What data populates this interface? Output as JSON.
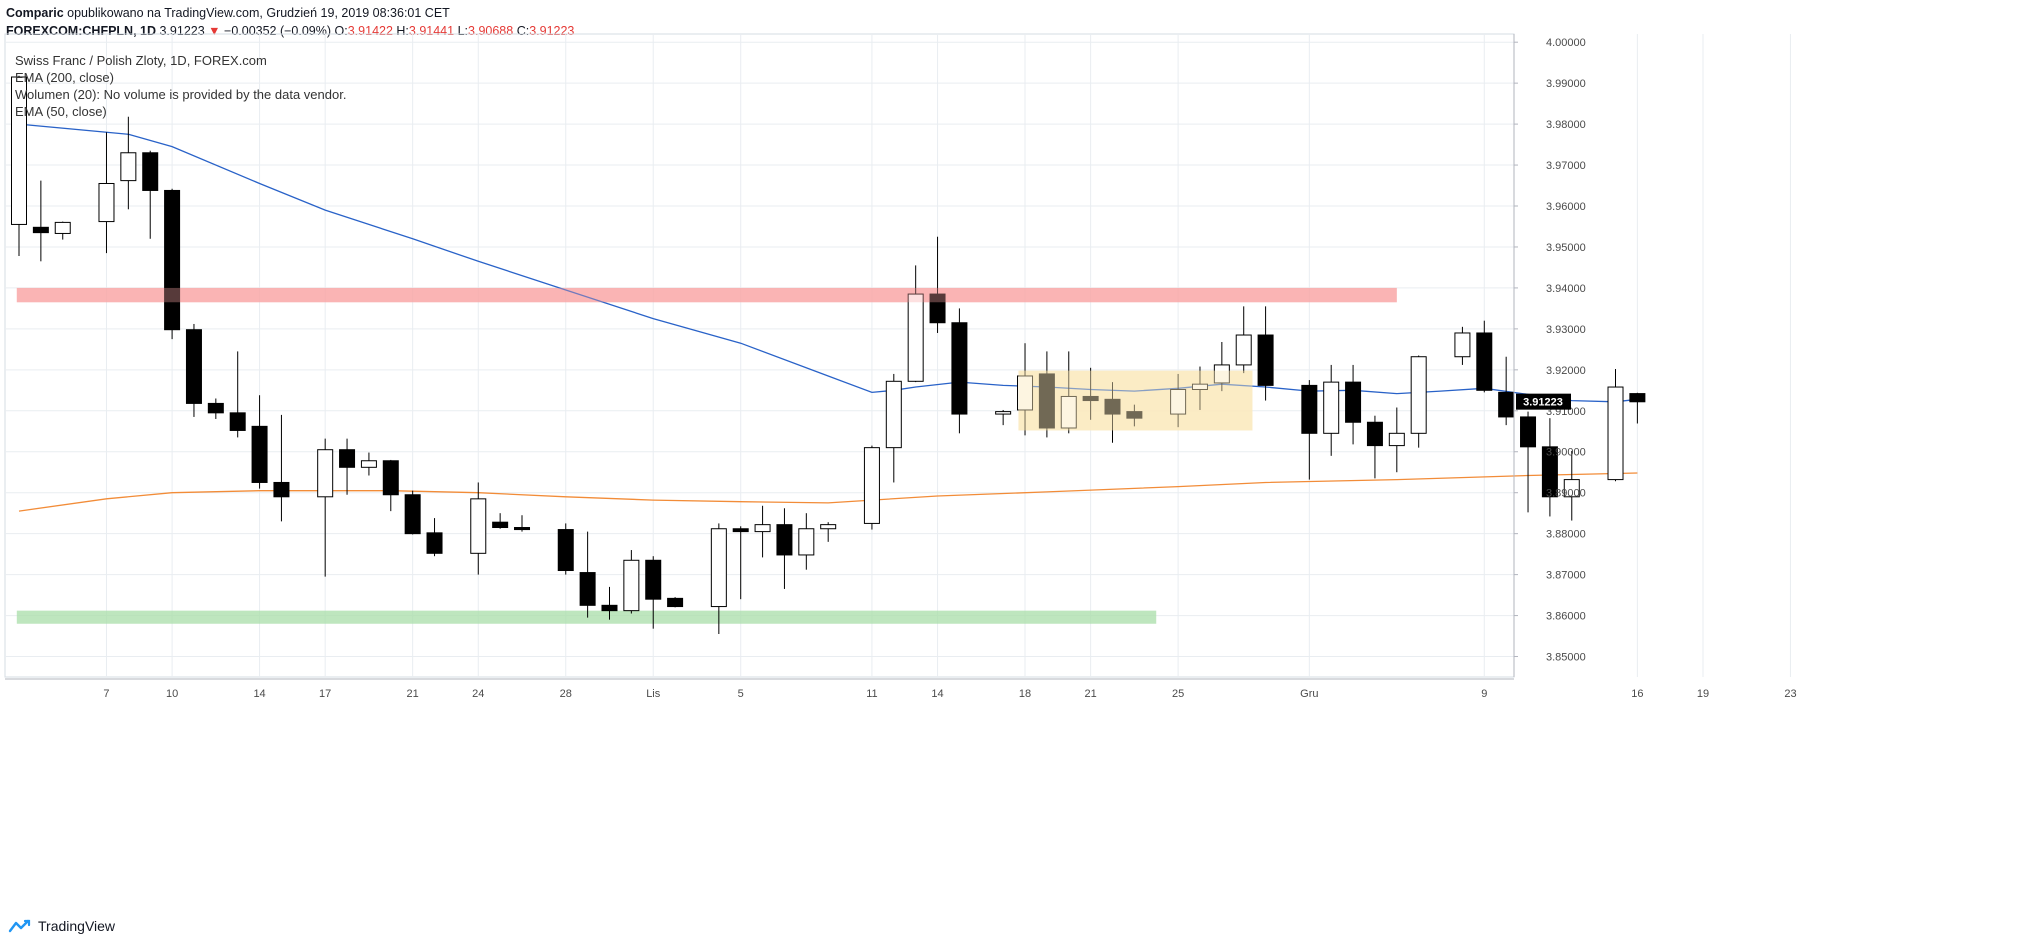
{
  "header": {
    "line1_user": "Comparic",
    "line1_rest": "opublikowano na TradingView.com, Grudzień 19, 2019 08:36:01 CET",
    "symbol": "FOREXCOM:CHFPLN, 1D",
    "last": "3.91223",
    "change_arrow": "▼",
    "change": "−0.00352 (−0.09%)",
    "o_label": "O:",
    "o_val": "3.91422",
    "h_label": "H:",
    "h_val": "3.91441",
    "l_label": "L:",
    "l_val": "3.90688",
    "c_label": "C:",
    "c_val": "3.91223"
  },
  "legend": {
    "title": "Swiss Franc / Polish Zloty, 1D, FOREX.com",
    "ema200": "EMA (200, close)",
    "volume": "Wolumen (20): No volume is provided by the data vendor.",
    "ema50": "EMA (50, close)"
  },
  "footer": {
    "brand": "TradingView"
  },
  "colors": {
    "up_body": "#ffffff",
    "down_body": "#000000",
    "wick": "#000000",
    "ema200": "#f28c38",
    "ema50": "#2962c8",
    "resistance": "#f8a5a5",
    "support": "#a8dea8",
    "range": "#fbe8bc",
    "grid": "#e9edf1",
    "price_tag": "#000000"
  },
  "chart_data": {
    "type": "candlestick",
    "ylim": [
      3.845,
      4.002
    ],
    "y_ticks": [
      "4.00000",
      "3.99000",
      "3.98000",
      "3.97000",
      "3.96000",
      "3.95000",
      "3.94000",
      "3.93000",
      "3.92000",
      "3.91000",
      "3.90000",
      "3.89000",
      "3.88000",
      "3.87000",
      "3.86000",
      "3.85000"
    ],
    "y_tick_values": [
      4.0,
      3.99,
      3.98,
      3.97,
      3.96,
      3.95,
      3.94,
      3.93,
      3.92,
      3.91,
      3.9,
      3.89,
      3.88,
      3.87,
      3.86,
      3.85
    ],
    "x_ticks": [
      {
        "label": "7",
        "day": 7
      },
      {
        "label": "10",
        "day": 10
      },
      {
        "label": "14",
        "day": 14
      },
      {
        "label": "17",
        "day": 17
      },
      {
        "label": "21",
        "day": 21
      },
      {
        "label": "24",
        "day": 24
      },
      {
        "label": "28",
        "day": 28
      },
      {
        "label": "Lis",
        "day": 32
      },
      {
        "label": "5",
        "day": 36
      },
      {
        "label": "11",
        "day": 42
      },
      {
        "label": "14",
        "day": 45
      },
      {
        "label": "18",
        "day": 49
      },
      {
        "label": "21",
        "day": 52
      },
      {
        "label": "25",
        "day": 56
      },
      {
        "label": "Gru",
        "day": 62
      },
      {
        "label": "9",
        "day": 70
      },
      {
        "label": "16",
        "day": 77
      },
      {
        "label": "19",
        "day": 80
      },
      {
        "label": "23",
        "day": 84
      }
    ],
    "last_price_label": "3.91223",
    "last_price": 3.91223,
    "candles": [
      {
        "d": 3,
        "o": 3.9555,
        "h": 3.9918,
        "l": 3.9478,
        "c": 3.9915
      },
      {
        "d": 4,
        "o": 3.9548,
        "h": 3.9662,
        "l": 3.9465,
        "c": 3.9535
      },
      {
        "d": 5,
        "o": 3.9533,
        "h": 3.9562,
        "l": 3.9518,
        "c": 3.956
      },
      {
        "d": 7,
        "o": 3.9562,
        "h": 3.978,
        "l": 3.9485,
        "c": 3.9655
      },
      {
        "d": 8,
        "o": 3.9662,
        "h": 3.9818,
        "l": 3.9592,
        "c": 3.973
      },
      {
        "d": 9,
        "o": 3.973,
        "h": 3.9735,
        "l": 3.952,
        "c": 3.9638
      },
      {
        "d": 10,
        "o": 3.9638,
        "h": 3.9642,
        "l": 3.9275,
        "c": 3.9298
      },
      {
        "d": 11,
        "o": 3.9298,
        "h": 3.9312,
        "l": 3.9085,
        "c": 3.9118
      },
      {
        "d": 12,
        "o": 3.9118,
        "h": 3.913,
        "l": 3.908,
        "c": 3.9095
      },
      {
        "d": 13,
        "o": 3.9095,
        "h": 3.9245,
        "l": 3.9035,
        "c": 3.9052
      },
      {
        "d": 14,
        "o": 3.9062,
        "h": 3.9138,
        "l": 3.891,
        "c": 3.8925
      },
      {
        "d": 15,
        "o": 3.8925,
        "h": 3.909,
        "l": 3.883,
        "c": 3.889
      },
      {
        "d": 17,
        "o": 3.889,
        "h": 3.9032,
        "l": 3.8695,
        "c": 3.9005
      },
      {
        "d": 18,
        "o": 3.9005,
        "h": 3.9032,
        "l": 3.8895,
        "c": 3.8962
      },
      {
        "d": 19,
        "o": 3.8962,
        "h": 3.8998,
        "l": 3.8942,
        "c": 3.8978
      },
      {
        "d": 20,
        "o": 3.8978,
        "h": 3.898,
        "l": 3.8855,
        "c": 3.8895
      },
      {
        "d": 21,
        "o": 3.8895,
        "h": 3.8905,
        "l": 3.8798,
        "c": 3.88
      },
      {
        "d": 22,
        "o": 3.8802,
        "h": 3.8838,
        "l": 3.8745,
        "c": 3.8752
      },
      {
        "d": 24,
        "o": 3.8752,
        "h": 3.8925,
        "l": 3.87,
        "c": 3.8885
      },
      {
        "d": 25,
        "o": 3.8828,
        "h": 3.885,
        "l": 3.8812,
        "c": 3.8815
      },
      {
        "d": 26,
        "o": 3.8815,
        "h": 3.8845,
        "l": 3.8805,
        "c": 3.881
      },
      {
        "d": 28,
        "o": 3.881,
        "h": 3.8825,
        "l": 3.87,
        "c": 3.871
      },
      {
        "d": 29,
        "o": 3.8705,
        "h": 3.8805,
        "l": 3.8595,
        "c": 3.8625
      },
      {
        "d": 30,
        "o": 3.8625,
        "h": 3.867,
        "l": 3.859,
        "c": 3.8612
      },
      {
        "d": 31,
        "o": 3.8612,
        "h": 3.876,
        "l": 3.8605,
        "c": 3.8735
      },
      {
        "d": 32,
        "o": 3.8735,
        "h": 3.8745,
        "l": 3.8568,
        "c": 3.864
      },
      {
        "d": 33,
        "o": 3.8642,
        "h": 3.8645,
        "l": 3.862,
        "c": 3.8622
      },
      {
        "d": 35,
        "o": 3.8622,
        "h": 3.8825,
        "l": 3.8555,
        "c": 3.8812
      },
      {
        "d": 36,
        "o": 3.8812,
        "h": 3.8818,
        "l": 3.864,
        "c": 3.8805
      },
      {
        "d": 37,
        "o": 3.8805,
        "h": 3.8868,
        "l": 3.8742,
        "c": 3.8822
      },
      {
        "d": 38,
        "o": 3.8822,
        "h": 3.8862,
        "l": 3.8665,
        "c": 3.8748
      },
      {
        "d": 39,
        "o": 3.8748,
        "h": 3.885,
        "l": 3.8712,
        "c": 3.8812
      },
      {
        "d": 40,
        "o": 3.8812,
        "h": 3.8828,
        "l": 3.878,
        "c": 3.8822
      },
      {
        "d": 42,
        "o": 3.8825,
        "h": 3.9015,
        "l": 3.881,
        "c": 3.901
      },
      {
        "d": 43,
        "o": 3.901,
        "h": 3.919,
        "l": 3.8925,
        "c": 3.9172
      },
      {
        "d": 44,
        "o": 3.9172,
        "h": 3.9455,
        "l": 3.917,
        "c": 3.9385
      },
      {
        "d": 45,
        "o": 3.9385,
        "h": 3.9525,
        "l": 3.929,
        "c": 3.9315
      },
      {
        "d": 46,
        "o": 3.9315,
        "h": 3.935,
        "l": 3.9045,
        "c": 3.9092
      },
      {
        "d": 48,
        "o": 3.9092,
        "h": 3.9102,
        "l": 3.9065,
        "c": 3.9098
      },
      {
        "d": 49,
        "o": 3.9102,
        "h": 3.9265,
        "l": 3.904,
        "c": 3.9185
      },
      {
        "d": 50,
        "o": 3.919,
        "h": 3.9245,
        "l": 3.9035,
        "c": 3.9058
      },
      {
        "d": 51,
        "o": 3.9058,
        "h": 3.9245,
        "l": 3.9045,
        "c": 3.9135
      },
      {
        "d": 52,
        "o": 3.9135,
        "h": 3.9205,
        "l": 3.9078,
        "c": 3.9125
      },
      {
        "d": 53,
        "o": 3.9128,
        "h": 3.917,
        "l": 3.9022,
        "c": 3.9092
      },
      {
        "d": 54,
        "o": 3.9098,
        "h": 3.9115,
        "l": 3.9062,
        "c": 3.9082
      },
      {
        "d": 56,
        "o": 3.9092,
        "h": 3.919,
        "l": 3.906,
        "c": 3.9152
      },
      {
        "d": 57,
        "o": 3.9152,
        "h": 3.9208,
        "l": 3.9102,
        "c": 3.9165
      },
      {
        "d": 58,
        "o": 3.9168,
        "h": 3.9268,
        "l": 3.9148,
        "c": 3.9212
      },
      {
        "d": 59,
        "o": 3.9212,
        "h": 3.9355,
        "l": 3.9192,
        "c": 3.9285
      },
      {
        "d": 60,
        "o": 3.9285,
        "h": 3.9355,
        "l": 3.9125,
        "c": 3.9162
      },
      {
        "d": 62,
        "o": 3.9162,
        "h": 3.9175,
        "l": 3.8932,
        "c": 3.9045
      },
      {
        "d": 63,
        "o": 3.9045,
        "h": 3.9212,
        "l": 3.899,
        "c": 3.917
      },
      {
        "d": 64,
        "o": 3.917,
        "h": 3.9212,
        "l": 3.9018,
        "c": 3.9072
      },
      {
        "d": 65,
        "o": 3.9072,
        "h": 3.9088,
        "l": 3.8935,
        "c": 3.9015
      },
      {
        "d": 66,
        "o": 3.9015,
        "h": 3.9108,
        "l": 3.895,
        "c": 3.9045
      },
      {
        "d": 67,
        "o": 3.9045,
        "h": 3.9235,
        "l": 3.901,
        "c": 3.9232
      },
      {
        "d": 69,
        "o": 3.9232,
        "h": 3.9305,
        "l": 3.9212,
        "c": 3.929
      },
      {
        "d": 70,
        "o": 3.929,
        "h": 3.932,
        "l": 3.9145,
        "c": 3.915
      },
      {
        "d": 71,
        "o": 3.9145,
        "h": 3.9232,
        "l": 3.9065,
        "c": 3.9085
      },
      {
        "d": 72,
        "o": 3.9085,
        "h": 3.9098,
        "l": 3.8852,
        "c": 3.9012
      },
      {
        "d": 73,
        "o": 3.9012,
        "h": 3.9082,
        "l": 3.8842,
        "c": 3.889
      },
      {
        "d": 74,
        "o": 3.889,
        "h": 3.9002,
        "l": 3.8832,
        "c": 3.8932
      },
      {
        "d": 76,
        "o": 3.8932,
        "h": 3.9202,
        "l": 3.8928,
        "c": 3.9158
      },
      {
        "d": 77,
        "o": 3.9142,
        "h": 3.9144,
        "l": 3.9069,
        "c": 3.9122
      }
    ],
    "ema50": [
      {
        "d": 3,
        "v": 3.98
      },
      {
        "d": 8,
        "v": 3.9775
      },
      {
        "d": 10,
        "v": 3.9745
      },
      {
        "d": 14,
        "v": 3.9655
      },
      {
        "d": 17,
        "v": 3.959
      },
      {
        "d": 21,
        "v": 3.952
      },
      {
        "d": 24,
        "v": 3.9465
      },
      {
        "d": 28,
        "v": 3.9395
      },
      {
        "d": 32,
        "v": 3.9325
      },
      {
        "d": 36,
        "v": 3.9265
      },
      {
        "d": 40,
        "v": 3.9185
      },
      {
        "d": 42,
        "v": 3.9145
      },
      {
        "d": 43,
        "v": 3.915
      },
      {
        "d": 44,
        "v": 3.9158
      },
      {
        "d": 46,
        "v": 3.917
      },
      {
        "d": 48,
        "v": 3.9162
      },
      {
        "d": 50,
        "v": 3.9158
      },
      {
        "d": 52,
        "v": 3.9152
      },
      {
        "d": 54,
        "v": 3.9148
      },
      {
        "d": 56,
        "v": 3.9155
      },
      {
        "d": 58,
        "v": 3.9165
      },
      {
        "d": 60,
        "v": 3.9158
      },
      {
        "d": 62,
        "v": 3.9148
      },
      {
        "d": 64,
        "v": 3.915
      },
      {
        "d": 66,
        "v": 3.9142
      },
      {
        "d": 68,
        "v": 3.9148
      },
      {
        "d": 70,
        "v": 3.9155
      },
      {
        "d": 72,
        "v": 3.914
      },
      {
        "d": 74,
        "v": 3.9125
      },
      {
        "d": 76,
        "v": 3.9122
      },
      {
        "d": 77,
        "v": 3.9128
      }
    ],
    "ema200": [
      {
        "d": 3,
        "v": 3.8855
      },
      {
        "d": 7,
        "v": 3.8885
      },
      {
        "d": 10,
        "v": 3.89
      },
      {
        "d": 14,
        "v": 3.8905
      },
      {
        "d": 20,
        "v": 3.8905
      },
      {
        "d": 24,
        "v": 3.89
      },
      {
        "d": 28,
        "v": 3.889
      },
      {
        "d": 32,
        "v": 3.8882
      },
      {
        "d": 36,
        "v": 3.8878
      },
      {
        "d": 40,
        "v": 3.8875
      },
      {
        "d": 42,
        "v": 3.8882
      },
      {
        "d": 45,
        "v": 3.8892
      },
      {
        "d": 50,
        "v": 3.8902
      },
      {
        "d": 56,
        "v": 3.8915
      },
      {
        "d": 60,
        "v": 3.8925
      },
      {
        "d": 66,
        "v": 3.8932
      },
      {
        "d": 72,
        "v": 3.8942
      },
      {
        "d": 77,
        "v": 3.8948
      }
    ],
    "zones": [
      {
        "name": "resistance",
        "d1": 2.9,
        "d2": 66,
        "y1": 3.9365,
        "y2": 3.94
      },
      {
        "name": "support",
        "d1": 2.9,
        "d2": 55,
        "y1": 3.858,
        "y2": 3.8612
      },
      {
        "name": "range",
        "d1": 48.7,
        "d2": 59.4,
        "y1": 3.9052,
        "y2": 3.9198
      }
    ]
  }
}
